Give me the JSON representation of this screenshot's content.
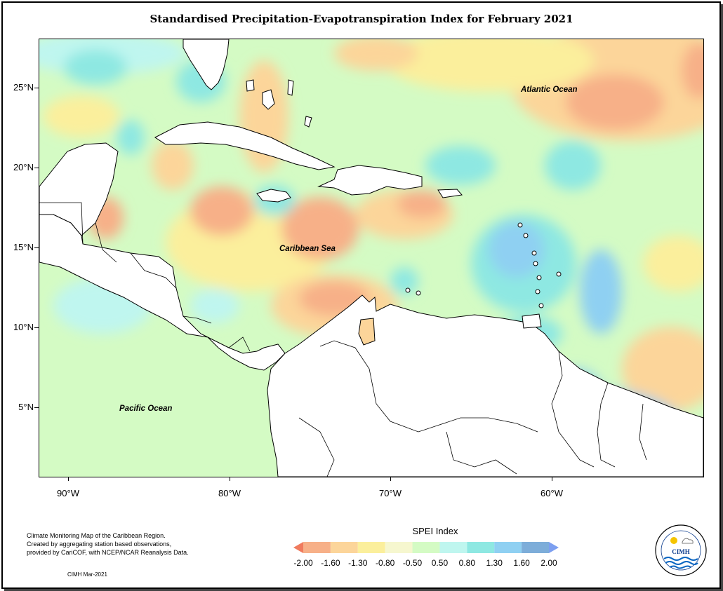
{
  "title": "Standardised Precipitation-Evapotranspiration Index for February 2021",
  "map": {
    "latitude_labels": [
      "25°N",
      "20°N",
      "15°N",
      "10°N",
      "5°N"
    ],
    "longitude_labels": [
      "90°W",
      "80°W",
      "70°W",
      "60°W"
    ],
    "ocean_labels": {
      "atlantic": "Atlantic Ocean",
      "caribbean": "Caribbean Sea",
      "pacific": "Pacific Ocean"
    }
  },
  "legend": {
    "title": "SPEI Index",
    "breaks": [
      "-2.00",
      "-1.60",
      "-1.30",
      "-0.80",
      "-0.50",
      "0.50",
      "0.80",
      "1.30",
      "1.60",
      "2.00"
    ],
    "colors": [
      "#f07b5e",
      "#f7b088",
      "#fcd59a",
      "#fbef9c",
      "#f6f7cf",
      "#d4fbc4",
      "#bff6ef",
      "#8ee8e2",
      "#8fd0f2",
      "#7dadd9",
      "#7c9ff0"
    ]
  },
  "notes": {
    "line1": "Climate Monitoring Map of the Caribbean Region.",
    "line2": "Created by aggregating station based observations,",
    "line3": "provided by CariCOF, with NCEP/NCAR Reanalysis Data.",
    "credit": "CIMH Mar-2021"
  },
  "logo": {
    "text": "CIMH"
  }
}
